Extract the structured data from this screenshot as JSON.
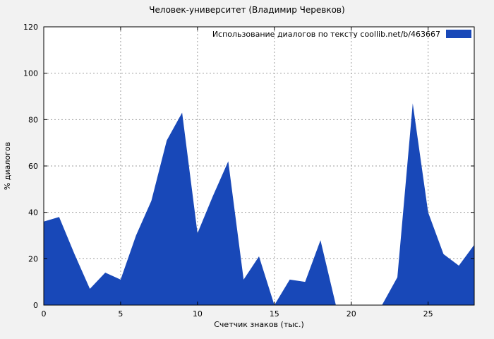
{
  "colors": {
    "accent": "#1848b8",
    "background": "#f2f2f2",
    "plot_background": "#ffffff",
    "grid": "#9e9e9e",
    "border": "#000000"
  },
  "chart_data": {
    "type": "area",
    "title": "Человек-университет (Владимир Черевков)",
    "legend": "Использование диалогов по тексту  coollib.net/b/463667",
    "xlabel": "Счетчик знаков (тыс.)",
    "ylabel": "% диалогов",
    "xlim": [
      0,
      28
    ],
    "ylim": [
      0,
      120
    ],
    "xticks": [
      0,
      5,
      10,
      15,
      20,
      25
    ],
    "yticks": [
      0,
      20,
      40,
      60,
      80,
      100,
      120
    ],
    "grid": true,
    "legend_position": "top-right",
    "x": [
      0,
      1,
      2,
      3,
      4,
      5,
      6,
      7,
      8,
      9,
      10,
      11,
      12,
      13,
      14,
      15,
      16,
      17,
      18,
      19,
      20,
      21,
      22,
      23,
      24,
      25,
      26,
      27,
      28
    ],
    "values": [
      36,
      38,
      22,
      7,
      14,
      11,
      30,
      45,
      71,
      83,
      31,
      47,
      62,
      11,
      21,
      0,
      11,
      10,
      28,
      0,
      0,
      0,
      0,
      12,
      87,
      40,
      22,
      17,
      26
    ]
  }
}
